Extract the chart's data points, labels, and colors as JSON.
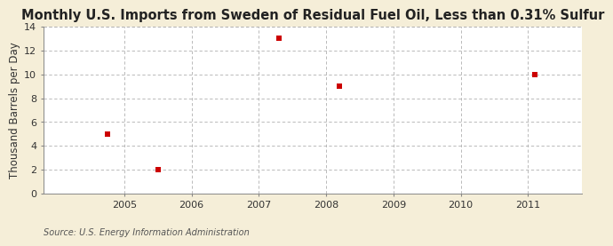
{
  "title": "Monthly U.S. Imports from Sweden of Residual Fuel Oil, Less than 0.31% Sulfur",
  "ylabel": "Thousand Barrels per Day",
  "source_text": "Source: U.S. Energy Information Administration",
  "data_x": [
    2004.75,
    2005.5,
    2007.3,
    2008.2,
    2011.1
  ],
  "data_y": [
    5,
    2,
    13,
    9,
    10
  ],
  "marker_color": "#cc0000",
  "marker_size": 4,
  "xlim": [
    2003.8,
    2011.8
  ],
  "ylim": [
    0,
    14
  ],
  "yticks": [
    0,
    2,
    4,
    6,
    8,
    10,
    12,
    14
  ],
  "xticks": [
    2005,
    2006,
    2007,
    2008,
    2009,
    2010,
    2011
  ],
  "background_color": "#f5eed8",
  "plot_bg_color": "#ffffff",
  "grid_color": "#b0b0b0",
  "title_fontsize": 10.5,
  "label_fontsize": 8.5,
  "tick_fontsize": 8,
  "source_fontsize": 7
}
